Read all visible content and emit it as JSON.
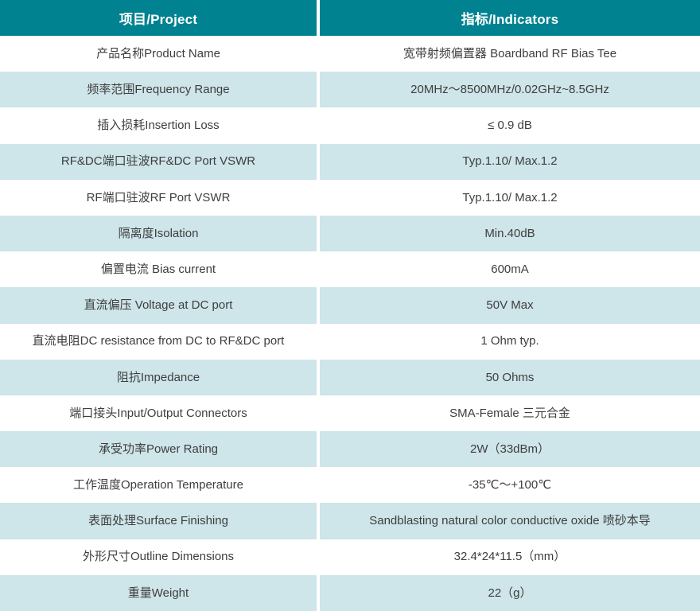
{
  "table": {
    "title": "RF Bias Tee specification table",
    "colors": {
      "header_bg": "#008291",
      "header_text": "#FFFFFF",
      "row_bg": "#FFFFFF",
      "row_alt_bg": "#CEE5E9",
      "body_text": "#3E3E3E",
      "divider": "#FFFFFF"
    },
    "header": {
      "project": "项目/Project",
      "indicator": "指标/Indicators"
    },
    "rows": [
      {
        "project": "产品名称Product Name",
        "indicator": "宽带射频偏置器 Boardband RF Bias Tee"
      },
      {
        "project": "频率范围Frequency Range",
        "indicator": "20MHz～8500MHz/0.02GHz~8.5GHz"
      },
      {
        "project": "插入损耗Insertion Loss",
        "indicator": "≤ 0.9 dB"
      },
      {
        "project": "RF&DC端口驻波RF&DC Port VSWR",
        "indicator": "Typ.1.10/ Max.1.2"
      },
      {
        "project": "RF端口驻波RF Port VSWR",
        "indicator": "Typ.1.10/ Max.1.2"
      },
      {
        "project": "隔离度Isolation",
        "indicator": "Min.40dB"
      },
      {
        "project": "偏置电流 Bias current",
        "indicator": "600mA"
      },
      {
        "project": "直流偏压 Voltage at DC port",
        "indicator": "50V Max"
      },
      {
        "project": "直流电阻DC resistance from DC to RF&DC port",
        "indicator": "1 Ohm typ."
      },
      {
        "project": "阻抗Impedance",
        "indicator": "50 Ohms"
      },
      {
        "project": "端口接头Input/Output Connectors",
        "indicator": "SMA-Female 三元合金"
      },
      {
        "project": "承受功率Power Rating",
        "indicator": "2W（33dBm）"
      },
      {
        "project": "工作温度Operation Temperature",
        "indicator": "-35℃～+100℃"
      },
      {
        "project": "表面处理Surface Finishing",
        "indicator": "Sandblasting natural color conductive oxide 喷砂本导"
      },
      {
        "project": "外形尺寸Outline Dimensions",
        "indicator": "32.4*24*11.5（mm）"
      },
      {
        "project": "重量Weight",
        "indicator": "22（g）"
      }
    ]
  }
}
